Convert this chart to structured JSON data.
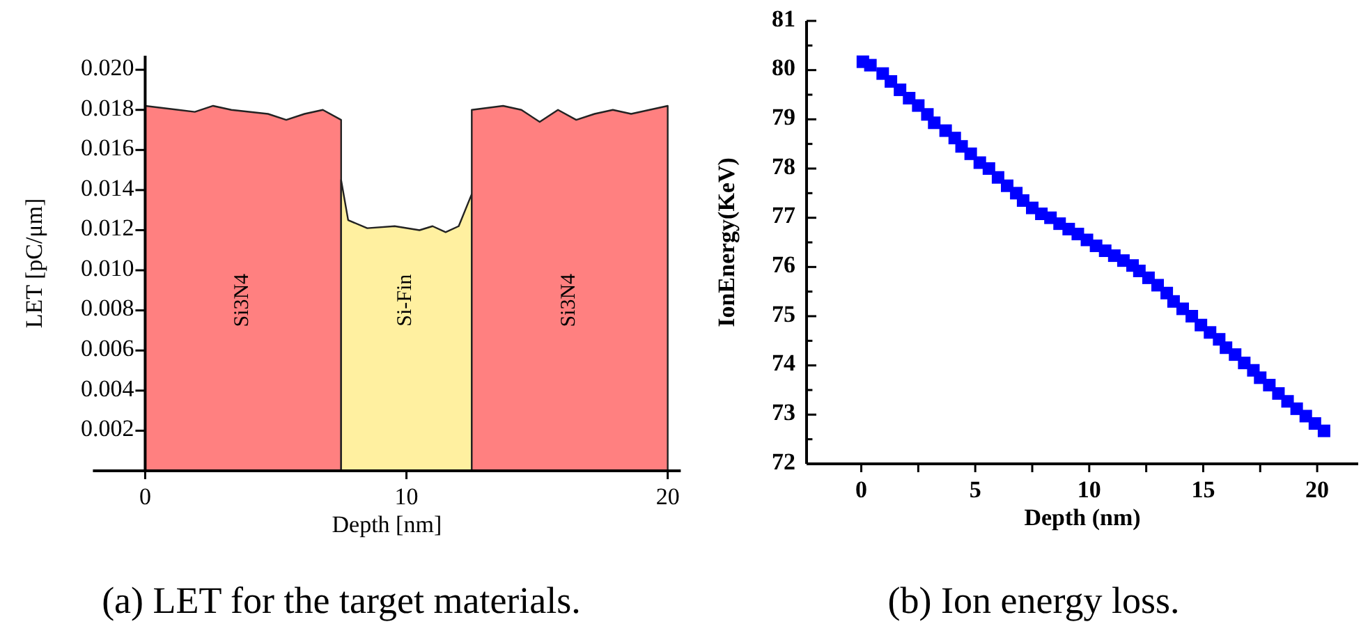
{
  "chart_data": [
    {
      "type": "area",
      "title": "(a) LET for the target materials.",
      "xlabel": "Depth [nm]",
      "ylabel": "LET [pC/μm]",
      "xlim": [
        -2,
        20.5
      ],
      "xticks": [
        0,
        10,
        20
      ],
      "ylim": [
        0,
        0.0207
      ],
      "yticks": [
        {
          "value": 0.002,
          "label": "0.002"
        },
        {
          "value": 0.004,
          "label": "0.004"
        },
        {
          "value": 0.006,
          "label": "0.006"
        },
        {
          "value": 0.008,
          "label": "0.008"
        },
        {
          "value": 0.01,
          "label": "0.010"
        },
        {
          "value": 0.012,
          "label": "0.012"
        },
        {
          "value": 0.014,
          "label": "0.014"
        },
        {
          "value": 0.016,
          "label": "0.016"
        },
        {
          "value": 0.018,
          "label": "0.018"
        },
        {
          "value": 0.02,
          "label": "0.020"
        }
      ],
      "grid": false,
      "series": [
        {
          "name": "Si3N4",
          "color": "#ff8080",
          "x": [
            0,
            1.9,
            2.6,
            3.3,
            4.7,
            5.4,
            6.1,
            6.8,
            7.5
          ],
          "values": [
            0.0182,
            0.0179,
            0.0182,
            0.018,
            0.0178,
            0.0175,
            0.0178,
            0.018,
            0.0175
          ]
        },
        {
          "name": "Si-Fin",
          "color": "#fff0a0",
          "x": [
            7.5,
            7.77,
            8.5,
            9.55,
            10.5,
            11,
            11.5,
            12,
            12.5
          ],
          "values": [
            0.0145,
            0.0125,
            0.0121,
            0.0122,
            0.012,
            0.0122,
            0.0119,
            0.0122,
            0.0138
          ]
        },
        {
          "name": "Si3N4",
          "color": "#ff8080",
          "x": [
            12.5,
            13.7,
            14.4,
            15.1,
            15.8,
            16.5,
            17.2,
            17.9,
            18.6,
            20
          ],
          "values": [
            0.018,
            0.0182,
            0.018,
            0.0174,
            0.018,
            0.0175,
            0.0178,
            0.018,
            0.0178,
            0.0182
          ]
        }
      ]
    },
    {
      "type": "scatter",
      "title": "(b) Ion energy loss.",
      "xlabel": "Depth (nm)",
      "ylabel": "IonEnergy(KeV)",
      "xlim": [
        -2.4,
        21.8
      ],
      "xticks": [
        0,
        {
          "value": 2.5,
          "label": null
        },
        5,
        {
          "value": 7.5,
          "label": null
        },
        10,
        {
          "value": 12.5,
          "label": null
        },
        15,
        {
          "value": 17.5,
          "label": null
        },
        20
      ],
      "ylim": [
        72,
        81
      ],
      "yticks": [
        72,
        {
          "value": 72.5,
          "label": null
        },
        73,
        {
          "value": 73.5,
          "label": null
        },
        74,
        {
          "value": 74.5,
          "label": null
        },
        75,
        {
          "value": 75.5,
          "label": null
        },
        76,
        {
          "value": 76.5,
          "label": null
        },
        77,
        {
          "value": 77.5,
          "label": null
        },
        78,
        {
          "value": 78.5,
          "label": null
        },
        79,
        {
          "value": 79.5,
          "label": null
        },
        80,
        {
          "value": 80.5,
          "label": null
        },
        81
      ],
      "grid": false,
      "marker": "square",
      "series": [
        {
          "color": "#0000ff",
          "x": [
            0.07,
            0.4,
            0.94,
            1.3,
            1.7,
            2.1,
            2.5,
            2.9,
            3.2,
            3.7,
            4.1,
            4.4,
            4.8,
            5.2,
            5.6,
            6.0,
            6.4,
            6.8,
            7.1,
            7.5,
            7.9,
            8.3,
            8.7,
            9.1,
            9.5,
            9.9,
            10.3,
            10.7,
            11.1,
            11.5,
            11.9,
            12.2,
            12.6,
            13.0,
            13.4,
            13.7,
            14.1,
            14.5,
            14.9,
            15.3,
            15.7,
            16.0,
            16.4,
            16.8,
            17.2,
            17.5,
            17.9,
            18.3,
            18.7,
            19.1,
            19.5,
            19.9,
            20.3
          ],
          "values": [
            80.17,
            80.1,
            79.93,
            79.77,
            79.6,
            79.43,
            79.28,
            79.1,
            78.93,
            78.77,
            78.62,
            78.45,
            78.3,
            78.12,
            78.0,
            77.82,
            77.65,
            77.5,
            77.35,
            77.2,
            77.08,
            77.0,
            76.88,
            76.77,
            76.67,
            76.55,
            76.43,
            76.33,
            76.23,
            76.13,
            76.03,
            75.92,
            75.78,
            75.63,
            75.47,
            75.3,
            75.15,
            75.0,
            74.82,
            74.67,
            74.53,
            74.36,
            74.22,
            74.05,
            73.9,
            73.75,
            73.6,
            73.43,
            73.27,
            73.12,
            72.97,
            72.82,
            72.67
          ]
        }
      ]
    }
  ]
}
